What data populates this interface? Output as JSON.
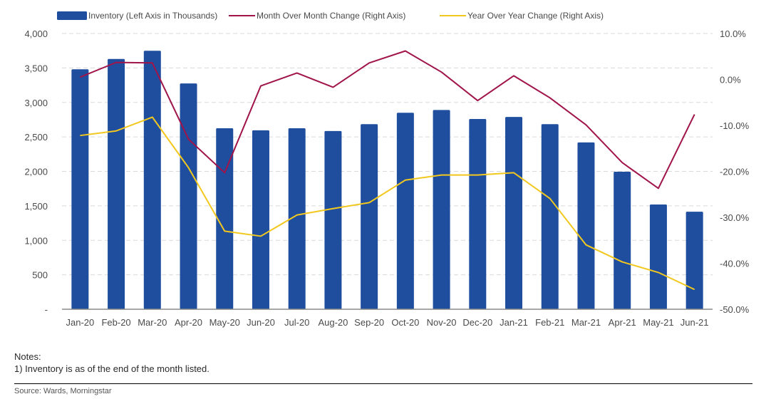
{
  "chart_data": {
    "type": "bar",
    "title": "",
    "categories": [
      "Jan-20",
      "Feb-20",
      "Mar-20",
      "Apr-20",
      "May-20",
      "Jun-20",
      "Jul-20",
      "Aug-20",
      "Sep-20",
      "Oct-20",
      "Nov-20",
      "Dec-20",
      "Jan-21",
      "Feb-21",
      "Mar-21",
      "Apr-21",
      "May-21",
      "Jun-21"
    ],
    "series": [
      {
        "name": "Inventory (Left Axis in Thousands)",
        "type": "bar",
        "axis": "left",
        "color": "#1f4e9e",
        "values": [
          3480,
          3630,
          3750,
          3275,
          2625,
          2595,
          2625,
          2585,
          2685,
          2850,
          2890,
          2760,
          2790,
          2685,
          2420,
          1995,
          1520,
          1415
        ]
      },
      {
        "name": "Month Over Month Change (Right Axis)",
        "type": "line",
        "axis": "right",
        "color": "#a0144a",
        "values": [
          0.5,
          3.7,
          3.6,
          -13.0,
          -20.3,
          -1.4,
          1.4,
          -1.7,
          3.6,
          6.2,
          1.6,
          -4.6,
          0.8,
          -4.0,
          -9.9,
          -18.1,
          -23.7,
          -7.6
        ]
      },
      {
        "name": "Year Over Year Change (Right Axis)",
        "type": "line",
        "axis": "right",
        "color": "#f2c81e",
        "values": [
          -12.2,
          -11.2,
          -8.2,
          -19.2,
          -33.0,
          -34.1,
          -29.5,
          -28.1,
          -26.8,
          -21.9,
          -20.8,
          -20.8,
          -20.3,
          -25.9,
          -36.0,
          -39.7,
          -42.0,
          -45.7
        ]
      }
    ],
    "left_axis": {
      "ylim": [
        0,
        4000
      ],
      "ticks": [
        0,
        500,
        1000,
        1500,
        2000,
        2500,
        3000,
        3500,
        4000
      ],
      "tick_labels": [
        "-",
        "500",
        "1,000",
        "1,500",
        "2,000",
        "2,500",
        "3,000",
        "3,500",
        "4,000"
      ]
    },
    "right_axis": {
      "ylim": [
        -50,
        10
      ],
      "ticks": [
        -50,
        -40,
        -30,
        -20,
        -10,
        0,
        10
      ],
      "tick_labels": [
        "-50.0%",
        "-40.0%",
        "-30.0%",
        "-20.0%",
        "-10.0%",
        "0.0%",
        "10.0%"
      ]
    },
    "xlabel": "",
    "ylabel": "",
    "grid": true,
    "legend": "top"
  },
  "notes": {
    "heading": "Notes:",
    "line1": "1) Inventory is as of the end of the month listed."
  },
  "source": "Source: Wards, Morningstar"
}
